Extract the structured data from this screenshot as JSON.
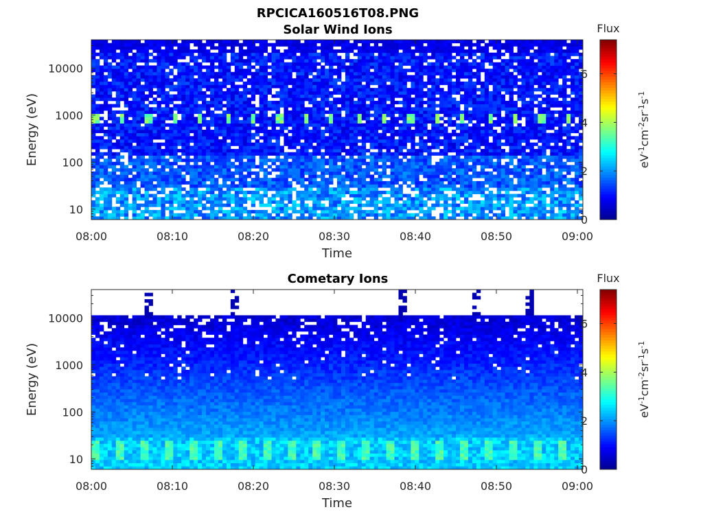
{
  "figure": {
    "title": "RPCICA160516T08.PNG"
  },
  "colormap": [
    "#00008f",
    "#0000ff",
    "#0080ff",
    "#00ffff",
    "#80ff80",
    "#ffff00",
    "#ff8000",
    "#ff0000",
    "#800000"
  ],
  "chart_data": [
    {
      "type": "heatmap",
      "title": "Solar Wind Ions",
      "xlabel": "Time",
      "ylabel": "Energy (eV)",
      "x_ticks": [
        "08:00",
        "08:10",
        "08:20",
        "08:30",
        "08:40",
        "08:50",
        "09:00"
      ],
      "xlim": [
        "08:00",
        "09:00"
      ],
      "y_scale": "log",
      "y_ticks": [
        10,
        100,
        1000,
        10000
      ],
      "y_tick_labels": [
        "10",
        "100",
        "1000",
        "10000"
      ],
      "ylim": [
        6,
        40000
      ],
      "colorbar": {
        "title": "Flux",
        "label": "eV-1cm-2sr-1s-1",
        "range": [
          0,
          7.4
        ],
        "ticks": [
          0,
          2,
          4,
          6
        ]
      },
      "features": "background flux 0.5-1.5 above 100 eV; periodic peaks ~3.5-4 at ~900 eV roughly every 3.2 min; 1.5-2.5 below 30 eV; scattered gaps"
    },
    {
      "type": "heatmap",
      "title": "Cometary Ions",
      "xlabel": "Time",
      "ylabel": "Energy (eV)",
      "x_ticks": [
        "08:00",
        "08:10",
        "08:20",
        "08:30",
        "08:40",
        "08:50",
        "09:00"
      ],
      "xlim": [
        "08:00",
        "09:00"
      ],
      "y_scale": "log",
      "y_ticks": [
        10,
        100,
        1000,
        10000
      ],
      "y_tick_labels": [
        "10",
        "100",
        "1000",
        "10000"
      ],
      "ylim": [
        6,
        40000
      ],
      "colorbar": {
        "title": "Flux",
        "label": "eV-1cm-2sr-1s-1",
        "range": [
          0,
          7.4
        ],
        "ticks": [
          0,
          2,
          4,
          6
        ]
      },
      "features": "no data above ~11000 eV except a few bursts; flux rises from ~0.3 near 10000 eV to ~2 at 30 eV; peaks ~3.5 between 10-25 eV"
    }
  ]
}
